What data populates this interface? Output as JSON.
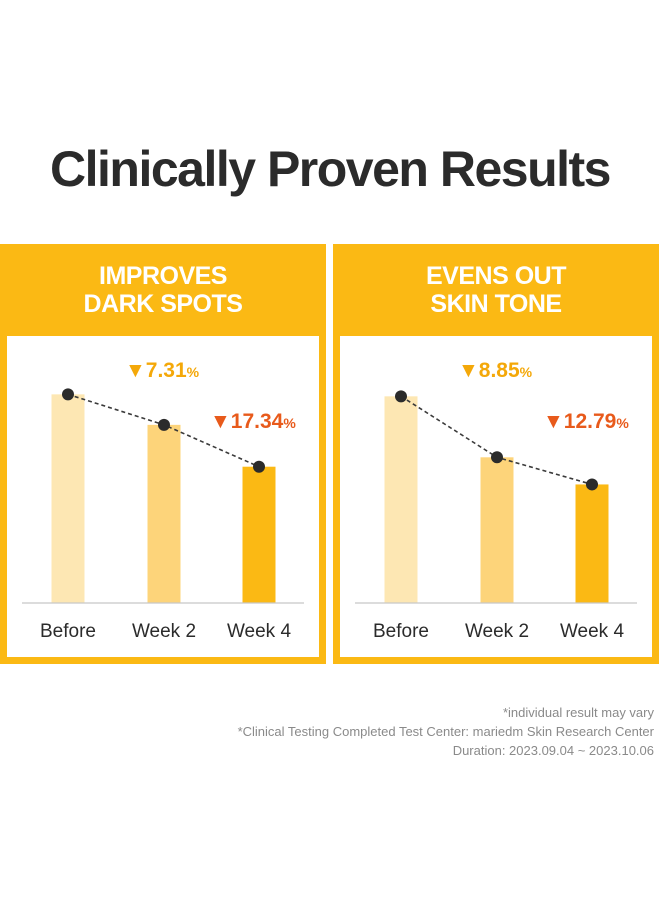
{
  "title": "Clinically Proven Results",
  "colors": {
    "accent": "#fbb914",
    "bar_before": "#fde7b3",
    "bar_week2": "#fdd47a",
    "bar_week4": "#fbb914",
    "callout_week2": "#f4a809",
    "callout_week4": "#e85a1b",
    "dot": "#2b2b2b"
  },
  "chart_data": [
    {
      "type": "bar",
      "title_lines": [
        "IMPROVES",
        "DARK SPOTS"
      ],
      "categories": [
        "Before",
        "Week 2",
        "Week 4"
      ],
      "values": [
        100,
        92.69,
        82.66
      ],
      "ylim": [
        50,
        102
      ],
      "overlay": "line",
      "annotations": [
        {
          "marker": "▼",
          "value": "7.31",
          "unit": "%",
          "style": "week2"
        },
        {
          "marker": "▼",
          "value": "17.34",
          "unit": "%",
          "style": "week4"
        }
      ]
    },
    {
      "type": "bar",
      "title_lines": [
        "EVENS OUT",
        "SKIN TONE"
      ],
      "categories": [
        "Before",
        "Week 2",
        "Week 4"
      ],
      "values": [
        100,
        91.15,
        87.21
      ],
      "ylim": [
        70,
        101.5
      ],
      "overlay": "line",
      "annotations": [
        {
          "marker": "▼",
          "value": "8.85",
          "unit": "%",
          "style": "week2"
        },
        {
          "marker": "▼",
          "value": "12.79",
          "unit": "%",
          "style": "week4"
        }
      ]
    }
  ],
  "footnotes": [
    "*individual result may vary",
    "*Clinical Testing Completed Test Center: mariedm Skin Research Center",
    "Duration: 2023.09.04 ~ 2023.10.06"
  ]
}
